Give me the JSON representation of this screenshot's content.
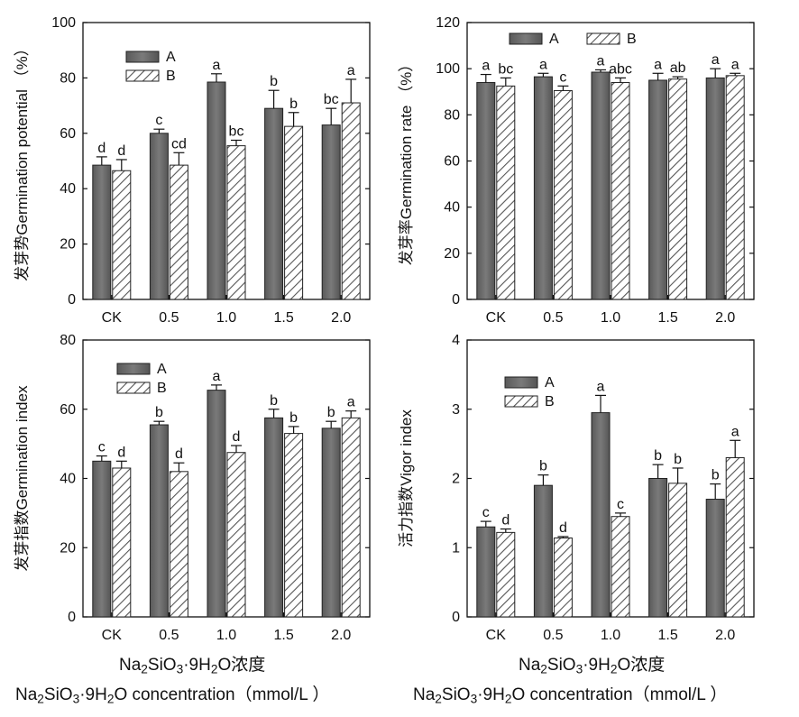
{
  "legend": {
    "a": "A",
    "b": "B"
  },
  "xtitle": {
    "cn_prefix": "Na",
    "cn_s1": "2",
    "cn_mid": "SiO",
    "cn_s2": "3",
    "cn_mid2": "·9H",
    "cn_s3": "2",
    "cn_end": "O浓度",
    "en_prefix": "Na",
    "en_s1": "2",
    "en_mid": "SiO",
    "en_s2": "3",
    "en_mid2": "·9H",
    "en_s3": "2",
    "en_end": "O concentration（mmol/L ）"
  },
  "chart_data": [
    {
      "type": "bar",
      "ylabel": "发芽势Germination  potential （%）",
      "ylim": [
        0,
        100
      ],
      "yticks": [
        0,
        20,
        40,
        60,
        80,
        100
      ],
      "categories": [
        "CK",
        "0.5",
        "1.0",
        "1.5",
        "2.0"
      ],
      "series": [
        {
          "name": "A",
          "values": [
            48.5,
            60,
            78.5,
            69,
            63
          ],
          "errors": [
            3,
            1.5,
            3,
            6.5,
            6
          ],
          "letters": [
            "d",
            "c",
            "a",
            "b",
            "bc"
          ]
        },
        {
          "name": "B",
          "values": [
            46.5,
            48.5,
            55.5,
            62.5,
            71
          ],
          "errors": [
            4,
            4.5,
            2,
            5,
            8.5
          ],
          "letters": [
            "d",
            "cd",
            "bc",
            "b",
            "a"
          ]
        }
      ],
      "legend_position": "top-left"
    },
    {
      "type": "bar",
      "ylabel": "发芽率Germination rate （%）",
      "ylim": [
        0,
        120
      ],
      "yticks": [
        0,
        20,
        40,
        60,
        80,
        100,
        120
      ],
      "categories": [
        "CK",
        "0.5",
        "1.0",
        "1.5",
        "2.0"
      ],
      "series": [
        {
          "name": "A",
          "values": [
            94,
            96.5,
            98.5,
            95,
            96
          ],
          "errors": [
            3.5,
            1.5,
            1,
            3,
            4
          ],
          "letters": [
            "a",
            "a",
            "a",
            "a",
            "a"
          ]
        },
        {
          "name": "B",
          "values": [
            92.5,
            90.5,
            94,
            95.5,
            97
          ],
          "errors": [
            3.5,
            2,
            2,
            1,
            1
          ],
          "letters": [
            "bc",
            "c",
            "abc",
            "ab",
            "a"
          ]
        }
      ],
      "legend_position": "top-center"
    },
    {
      "type": "bar",
      "ylabel": "发芽指数Germination index",
      "ylim": [
        0,
        80
      ],
      "yticks": [
        0,
        20,
        40,
        60,
        80
      ],
      "categories": [
        "CK",
        "0.5",
        "1.0",
        "1.5",
        "2.0"
      ],
      "series": [
        {
          "name": "A",
          "values": [
            45,
            55.5,
            65.5,
            57.5,
            54.5
          ],
          "errors": [
            1.5,
            1,
            1.5,
            2.5,
            2
          ],
          "letters": [
            "c",
            "b",
            "a",
            "b",
            "b"
          ]
        },
        {
          "name": "B",
          "values": [
            43,
            42,
            47.5,
            53,
            57.5
          ],
          "errors": [
            2,
            2.5,
            2,
            2,
            2
          ],
          "letters": [
            "d",
            "d",
            "d",
            "b",
            "a"
          ]
        }
      ],
      "legend_position": "top-left"
    },
    {
      "type": "bar",
      "ylabel": "活力指数Vigor index",
      "ylim": [
        0,
        4
      ],
      "yticks": [
        0,
        1,
        2,
        3,
        4
      ],
      "categories": [
        "CK",
        "0.5",
        "1.0",
        "1.5",
        "2.0"
      ],
      "series": [
        {
          "name": "A",
          "values": [
            1.3,
            1.9,
            2.95,
            2.0,
            1.7
          ],
          "errors": [
            0.08,
            0.15,
            0.25,
            0.2,
            0.22
          ],
          "letters": [
            "c",
            "b",
            "a",
            "b",
            "b"
          ]
        },
        {
          "name": "B",
          "values": [
            1.22,
            1.14,
            1.45,
            1.93,
            2.3
          ],
          "errors": [
            0.05,
            0.02,
            0.05,
            0.22,
            0.25
          ],
          "letters": [
            "d",
            "d",
            "c",
            "b",
            "a"
          ]
        }
      ],
      "legend_position": "top-left"
    }
  ]
}
